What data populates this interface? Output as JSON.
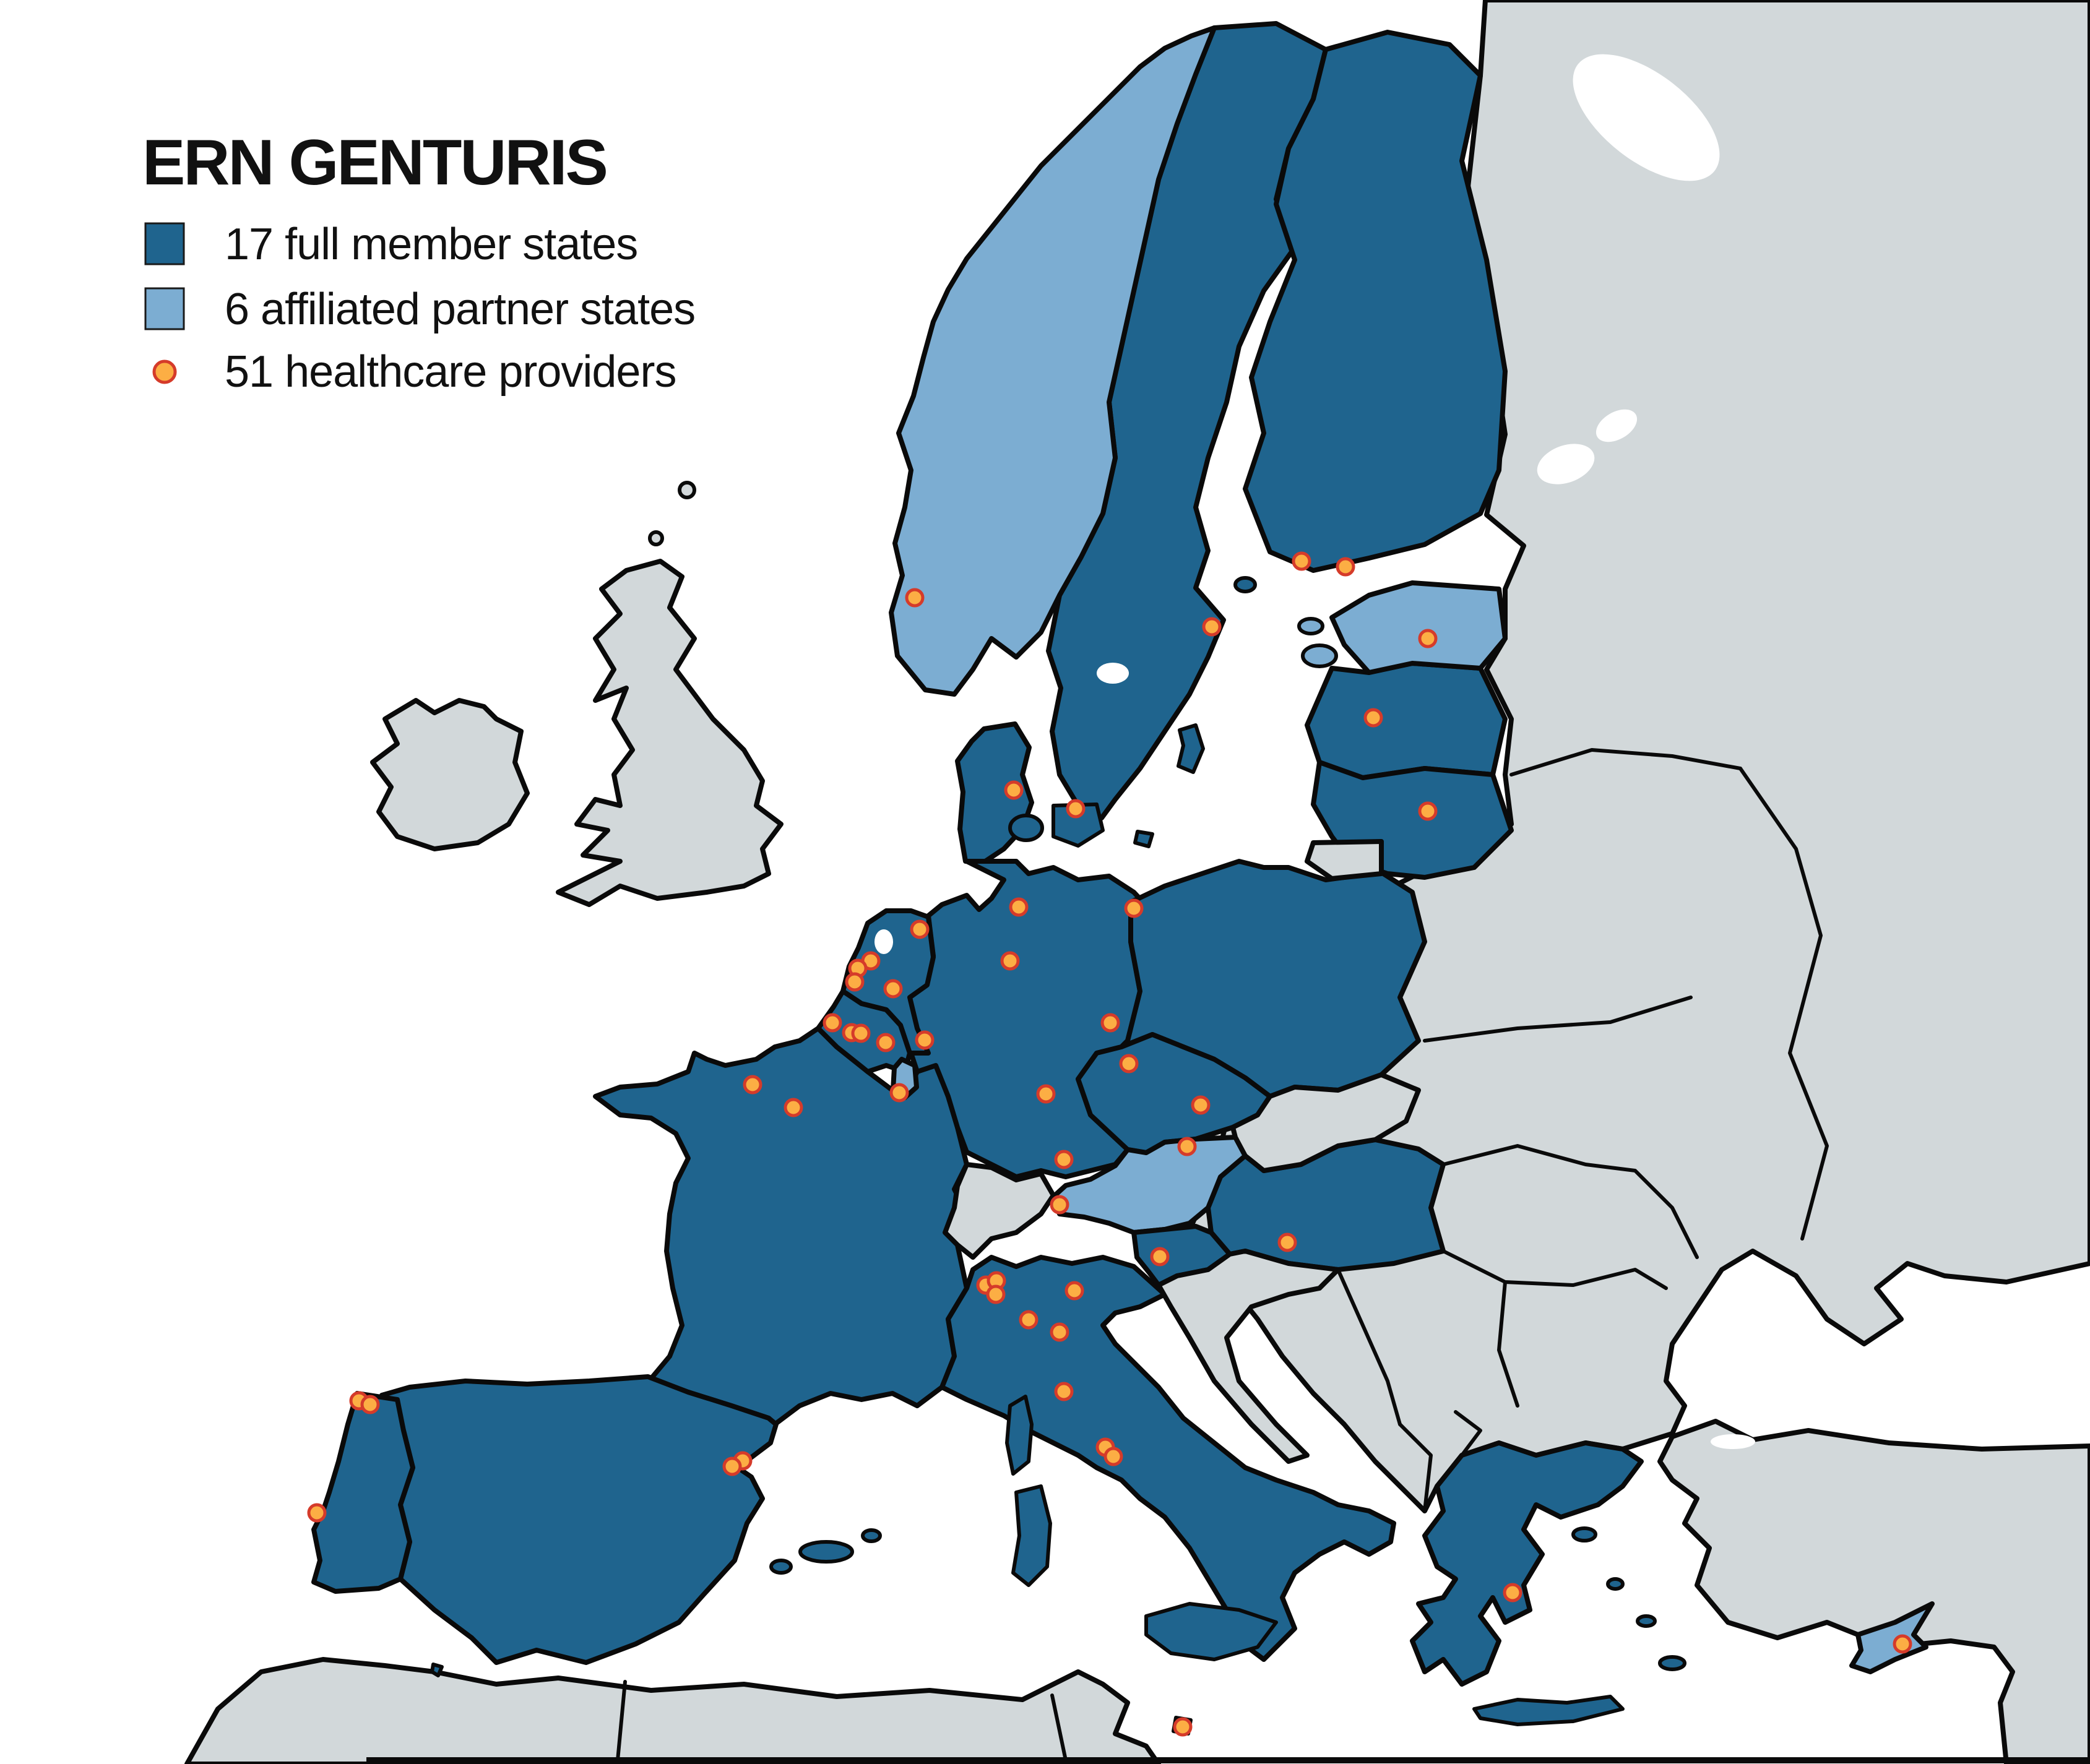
{
  "title": "ERN GENTURIS",
  "legend": {
    "items": [
      {
        "id": "full-member-states",
        "marker": "square",
        "color_key": "full_member",
        "label": "17 full member states",
        "count": 17
      },
      {
        "id": "affiliated-partner-states",
        "marker": "square",
        "color_key": "affiliated_partner",
        "label": "6 affiliated partner states",
        "count": 6
      },
      {
        "id": "healthcare-providers",
        "marker": "dot",
        "color_key": "provider",
        "label": "51 healthcare providers",
        "count": 51
      }
    ]
  },
  "colors": {
    "full_member": "#1F648E",
    "affiliated_partner": "#7CADD2",
    "non_member": "#D2D8DA",
    "sea": "#FFFFFF",
    "border": "#0A0A0A",
    "provider_fill": "#FCAE44",
    "provider_stroke": "#D53B2A"
  },
  "map": {
    "full_member_states": [
      "Sweden",
      "Finland",
      "Latvia",
      "Lithuania",
      "Denmark",
      "Germany",
      "Netherlands",
      "Belgium",
      "France",
      "Spain",
      "Portugal",
      "Italy",
      "Czechia",
      "Poland",
      "Hungary",
      "Slovenia",
      "Greece"
    ],
    "affiliated_partner_states": [
      "Norway",
      "Estonia",
      "Luxembourg",
      "Austria",
      "Cyprus",
      "Malta"
    ],
    "providers": {
      "count": 51,
      "points": [
        [
          1478,
          966
        ],
        [
          1958,
          1013
        ],
        [
          2103,
          907
        ],
        [
          2174,
          916
        ],
        [
          2307,
          1032
        ],
        [
          2219,
          1160
        ],
        [
          2307,
          1311
        ],
        [
          1638,
          1277
        ],
        [
          1738,
          1307
        ],
        [
          1646,
          1466
        ],
        [
          1832,
          1468
        ],
        [
          1632,
          1553
        ],
        [
          1486,
          1502
        ],
        [
          1407,
          1553
        ],
        [
          1386,
          1565
        ],
        [
          1381,
          1587
        ],
        [
          1443,
          1598
        ],
        [
          1494,
          1681
        ],
        [
          1345,
          1653
        ],
        [
          1376,
          1669
        ],
        [
          1391,
          1670
        ],
        [
          1431,
          1685
        ],
        [
          1453,
          1766
        ],
        [
          1216,
          1753
        ],
        [
          1282,
          1790
        ],
        [
          1690,
          1768
        ],
        [
          1794,
          1653
        ],
        [
          1824,
          1719
        ],
        [
          1940,
          1786
        ],
        [
          1918,
          1853
        ],
        [
          1719,
          1874
        ],
        [
          1712,
          1947
        ],
        [
          1874,
          2031
        ],
        [
          2080,
          2008
        ],
        [
          1593,
          2077
        ],
        [
          1610,
          2070
        ],
        [
          1609,
          2092
        ],
        [
          1736,
          2086
        ],
        [
          1662,
          2133
        ],
        [
          1712,
          2153
        ],
        [
          1719,
          2249
        ],
        [
          1786,
          2339
        ],
        [
          1799,
          2354
        ],
        [
          1200,
          2361
        ],
        [
          1183,
          2370
        ],
        [
          580,
          2264
        ],
        [
          598,
          2270
        ],
        [
          512,
          2445
        ],
        [
          2444,
          2574
        ],
        [
          3074,
          2657
        ],
        [
          1911,
          2791
        ]
      ]
    }
  }
}
